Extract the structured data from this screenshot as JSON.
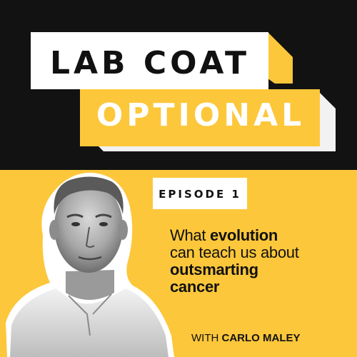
{
  "title": {
    "line1": "LAB COAT",
    "line2": "OPTIONAL"
  },
  "episode": {
    "label": "EPISODE 1"
  },
  "description": {
    "part1": "What ",
    "highlight1": "evolution",
    "part2": "can teach us about",
    "highlight2": "outsmarting",
    "part3": "cancer"
  },
  "guest": {
    "prefix": "WITH ",
    "name": "CARLO MALEY"
  },
  "colors": {
    "accent_yellow": "#fcc73a",
    "background_black": "#121212",
    "panel_white": "#ffffff"
  }
}
